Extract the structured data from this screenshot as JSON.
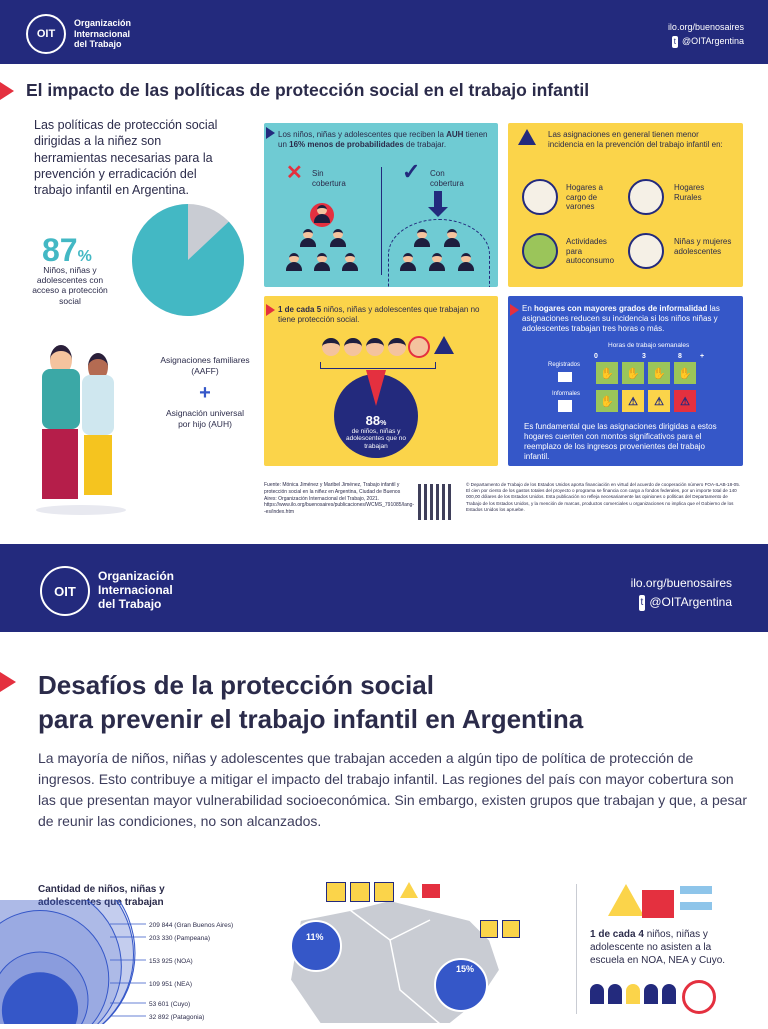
{
  "header": {
    "org_line1": "Organización",
    "org_line2": "Internacional",
    "org_line3": "del Trabajo",
    "emblem": "OIT",
    "site": "ilo.org/buenosaires",
    "twitter": "@OITArgentina",
    "twitter_icon": "twitter-icon"
  },
  "page1": {
    "title": "El impacto de las políticas de protección social en el trabajo infantil",
    "intro": "Las políticas de protección social dirigidas a la niñez son herramientas necesarias para la prevención y erradicación del trabajo infantil en Argentina.",
    "pie": {
      "percent": "87",
      "percent_sign": "%",
      "value": 0.87,
      "caption": "Niños, niñas y adolescentes con acceso a protección social",
      "accent": "#43b8c4"
    },
    "aaff": "Asignaciones familiares (AAFF)",
    "plus": "+",
    "auh": "Asignación universal por hijo (AUH)",
    "panel_auh": {
      "text_a": "Los niños, niñas y adolescentes que reciben la ",
      "text_b": "AUH",
      "text_c": " tienen un ",
      "text_d": "16% menos de probabilidades",
      "text_e": " de trabajar.",
      "sin_label": "Sin",
      "sin_label2": "cobertura",
      "con_label": "Con",
      "con_label2": "cobertura",
      "bg": "#6fcbd3"
    },
    "panel_asig": {
      "text": "Las asignaciones en general tienen menor incidencia en la prevención del trabajo infantil en:",
      "items": [
        {
          "label": "Hogares a cargo de varones"
        },
        {
          "label": "Hogares Rurales"
        },
        {
          "label": "Actividades para autoconsumo"
        },
        {
          "label": "Niñas y mujeres adolescentes"
        }
      ],
      "bg": "#fbd44a"
    },
    "panel_cinco": {
      "text_a": "1 de cada 5",
      "text_b": " niños, niñas y adolescentes  que trabajan no tiene protección social.",
      "percent": "88",
      "percent_sign": "%",
      "caption": "de niños, niñas y adolescentes que no trabajan",
      "bg": "#fbd44a"
    },
    "panel_informal": {
      "text_a": "En ",
      "text_b": "hogares con mayores grados de informalidad",
      "text_c": " las asignaciones reducen su incidencia si los niños niñas y adolescentes trabajan tres horas o más.",
      "hours_title": "Horas de trabajo semanales",
      "ticks": [
        "0",
        "3",
        "8",
        "+"
      ],
      "row1": "Registrados",
      "row2": "Informales",
      "footer": "Es fundamental que las asignaciones dirigidas a estos hogares cuenten con montos significativos para el reemplazo de los ingresos provenientes del trabajo infantil.",
      "bg": "#3557c8"
    },
    "source": "Fuente: Mónica Jiménez y Maribel Jiménez, Trabajo infantil y protección social en la niñez en Argentina, Ciudad de Buenos Aires: Organización Internacional del Trabajo, 2021. https://www.ilo.org/buenosaires/publicaciones/WCMS_791085/lang--es/index.htm",
    "disclaimer": "© Departamento de Trabajo de los Estados Unidos aporta financiación en virtud del acuerdo de cooperación número FOA-ILAB-18-05. El cien por ciento de los gastos totales del proyecto o programa se financia con cargo a fondos federales, por un importe total de 140 000,00 dólares de los Estados Unidos. Esta publicación no refleja necesariamente las opiniones o políticas del Departamento de Trabajo de los Estados Unidos, y la mención de marcas, productos comerciales u organizaciones no implica que el Gobierno de los Estados Unidos los apruebe."
  },
  "page2": {
    "title1": "Desafíos de la protección social",
    "title2": "para prevenir el trabajo infantil en Argentina",
    "intro": "La mayoría de niños, niñas y adolescentes que trabajan acceden a algún tipo de política de protección de ingresos. Esto contribuye a mitigar el impacto del trabajo infantil. Las regiones del país con mayor cobertura son las que presentan mayor vulnerabilidad socioeconómica. Sin embargo, existen grupos que trabajan y que, a pesar de reunir las condiciones, no son alcanzados.",
    "chart_title": "Cantidad de niños, niñas y adolescentes que trabajan",
    "regions": [
      {
        "label": "209 844 (Gran Buenos Aires)",
        "value": 209844
      },
      {
        "label": "203 330 (Pampeana)",
        "value": 203330
      },
      {
        "label": "153 925 (NOA)",
        "value": 153925
      },
      {
        "label": "109 951 (NEA)",
        "value": 109951
      },
      {
        "label": "53 601 (Cuyo)",
        "value": 53601
      },
      {
        "label": "32 892 (Patagonia)",
        "value": 32892
      }
    ],
    "map_pct1": "11%",
    "map_pct2": "15%",
    "right_a": "1 de cada 4",
    "right_b": " niños, niñas y adolescente no asisten a la escuela en NOA, NEA y Cuyo."
  }
}
